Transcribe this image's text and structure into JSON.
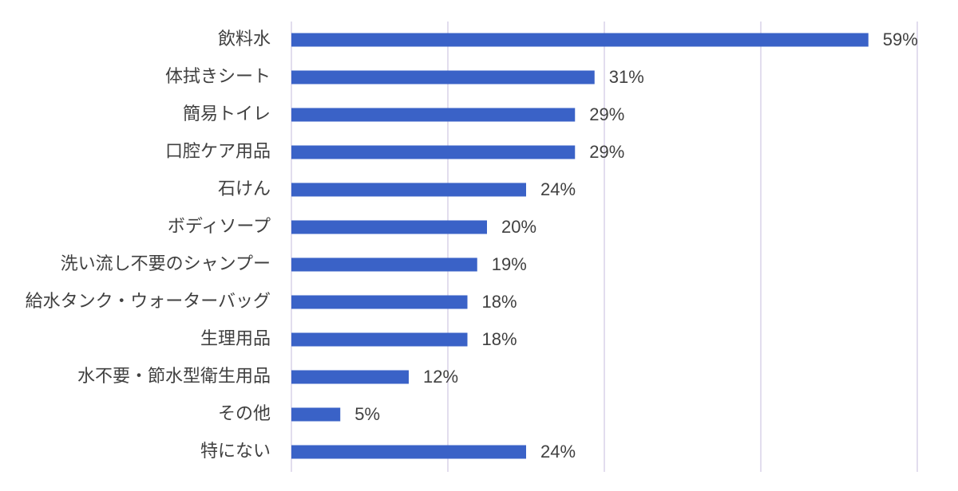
{
  "chart_data": {
    "type": "bar",
    "orientation": "horizontal",
    "categories": [
      "飲料水",
      "体拭きシート",
      "簡易トイレ",
      "口腔ケア用品",
      "石けん",
      "ボディソープ",
      "洗い流し不要のシャンプー",
      "給水タンク・ウォーターバッグ",
      "生理用品",
      "水不要・節水型衛生用品",
      "その他",
      "特にない"
    ],
    "values": [
      59,
      31,
      29,
      29,
      24,
      20,
      19,
      18,
      18,
      12,
      5,
      24
    ],
    "value_labels": [
      "59%",
      "31%",
      "29%",
      "29%",
      "24%",
      "20%",
      "19%",
      "18%",
      "18%",
      "12%",
      "5%",
      "24%"
    ],
    "xlim": [
      0,
      64
    ],
    "grid": true,
    "bar_color": "#3a62c7"
  }
}
